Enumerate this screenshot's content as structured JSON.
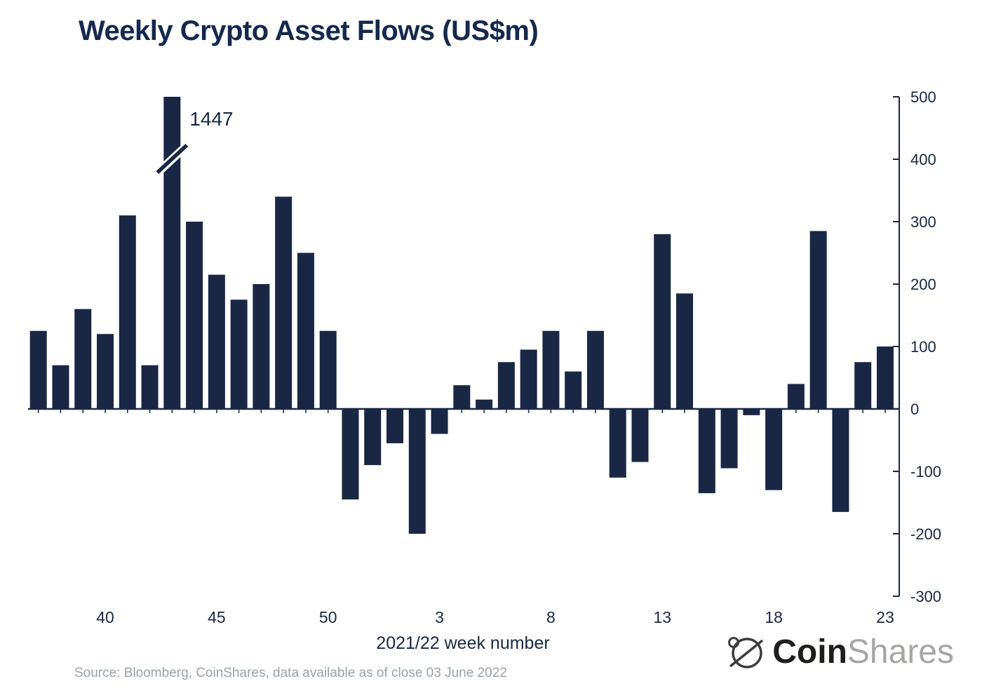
{
  "page": {
    "source": "Source: Bloomberg, CoinShares, data available as of close 03 June 2022",
    "logo": {
      "part1": "Coin",
      "part2": "Shares"
    }
  },
  "chart_data": {
    "type": "bar",
    "title": "Weekly Crypto Asset Flows (US$m)",
    "xlabel": "2021/22 week number",
    "ylabel": "",
    "ylim": [
      -300,
      500
    ],
    "y_ticks": [
      500,
      400,
      300,
      200,
      100,
      0,
      -100,
      -200,
      -300
    ],
    "x_tick_labels": [
      "40",
      "45",
      "50",
      "3",
      "8",
      "13",
      "18",
      "23"
    ],
    "grid": false,
    "legend": "none",
    "bar_color": "#1a2744",
    "axis_color": "#1a2744",
    "break_marker": {
      "cap": 500,
      "value": 1447,
      "label": "1447"
    },
    "categories": [
      "37",
      "38",
      "39",
      "40",
      "41",
      "42",
      "43",
      "44",
      "45",
      "46",
      "47",
      "48",
      "49",
      "50",
      "51",
      "52",
      "1",
      "2",
      "3",
      "4",
      "5",
      "6",
      "7",
      "8",
      "9",
      "10",
      "11",
      "12",
      "13",
      "14",
      "15",
      "16",
      "17",
      "18",
      "19",
      "20",
      "21",
      "22",
      "23"
    ],
    "values": [
      125,
      70,
      160,
      120,
      310,
      70,
      1447,
      300,
      215,
      175,
      200,
      340,
      250,
      125,
      -145,
      -90,
      -55,
      -200,
      -40,
      38,
      15,
      75,
      95,
      125,
      60,
      125,
      -110,
      -85,
      280,
      185,
      -135,
      -95,
      -10,
      -130,
      40,
      285,
      -165,
      75,
      100
    ]
  }
}
